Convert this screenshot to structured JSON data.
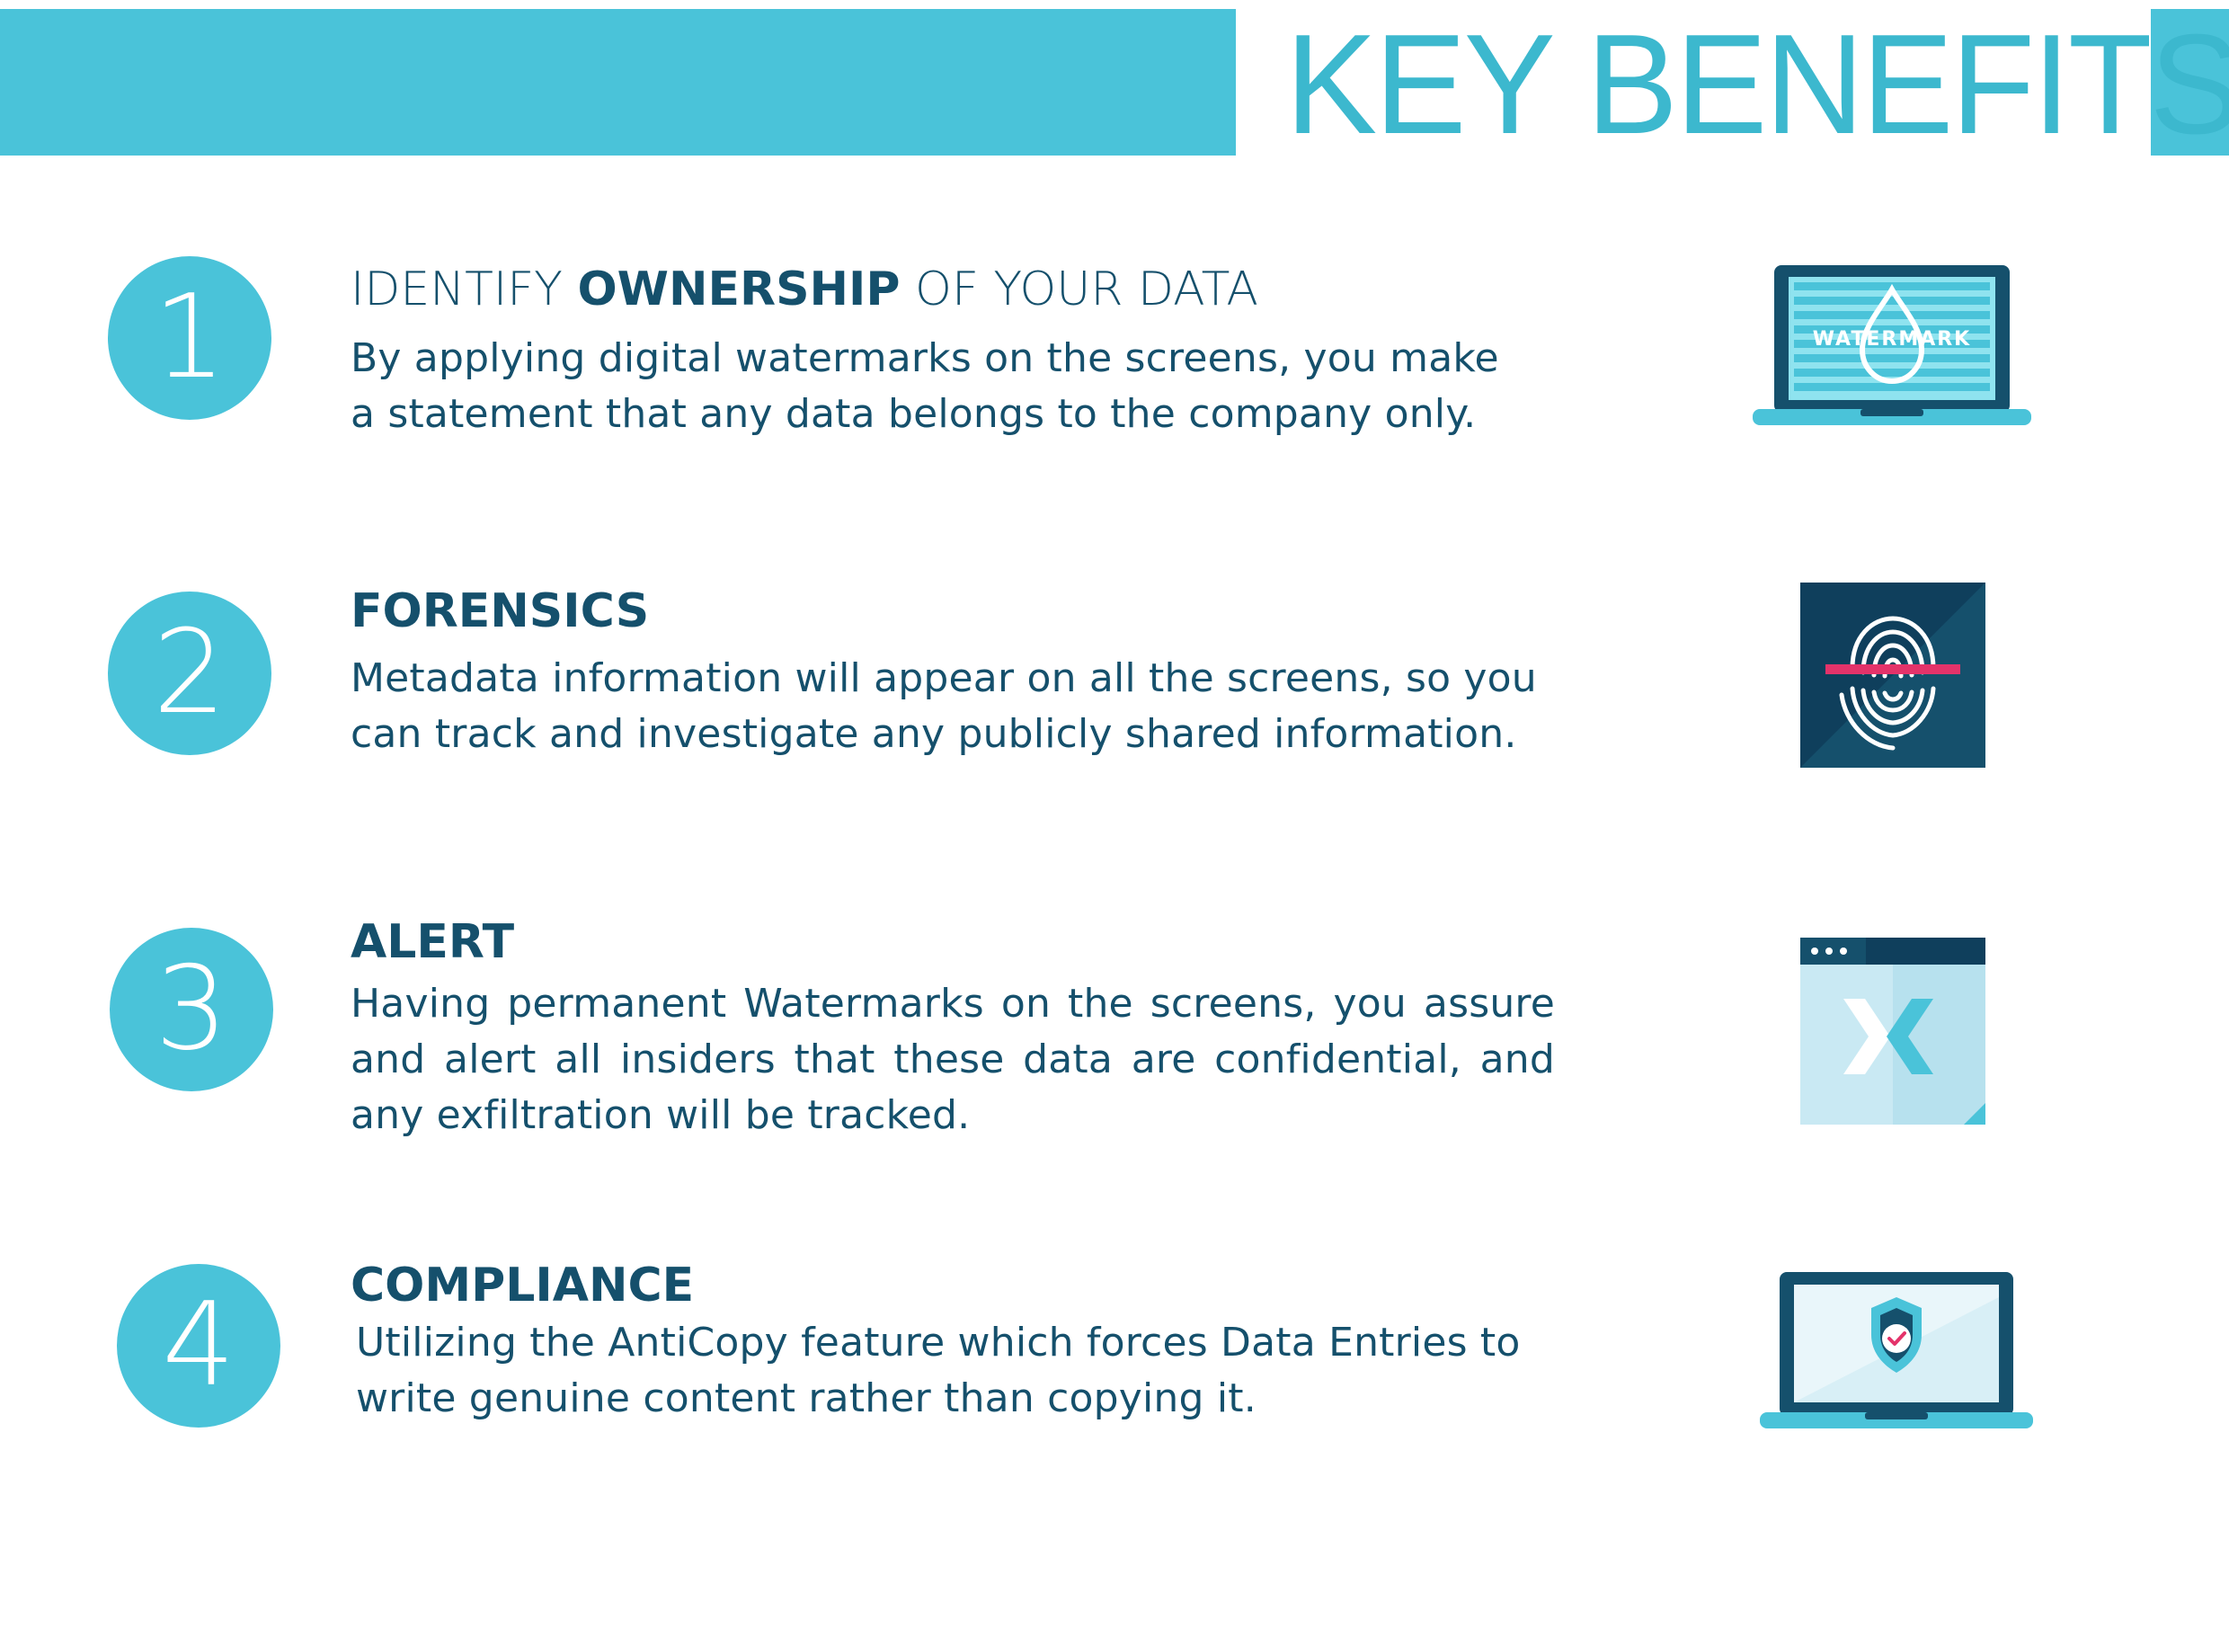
{
  "header": {
    "title": "KEY BENEFITS",
    "accent_color": "#4ac3d9",
    "title_color": "#3cb8ce"
  },
  "benefits": [
    {
      "number": "1",
      "heading_prefix": "IDENTIFY ",
      "heading_bold": "OWNERSHIP",
      "heading_suffix": " OF YOUR DATA",
      "desc_line1": "By applying digital watermarks on the screens, you make",
      "desc_line2": "a statement that any data belongs to the company only.",
      "icon": "laptop-watermark-icon",
      "icon_label": "WATERMARK"
    },
    {
      "number": "2",
      "heading": "FORENSICS",
      "desc_line1": "Metadata information will appear on all the screens, so you",
      "desc_line2": "can track and investigate any publicly shared information.",
      "icon": "fingerprint-scan-icon"
    },
    {
      "number": "3",
      "heading": "ALERT",
      "desc": "Having permanent Watermarks on the screens, you assure and alert all insiders that these data are confidential, and any exfiltration will be tracked.",
      "icon": "browser-window-alert-icon"
    },
    {
      "number": "4",
      "heading": "COMPLIANCE",
      "desc_line1": "Utilizing the AntiCopy feature which forces Data Entries to",
      "desc_line2": "write genuine content rather than copying it.",
      "icon": "laptop-shield-check-icon"
    }
  ]
}
